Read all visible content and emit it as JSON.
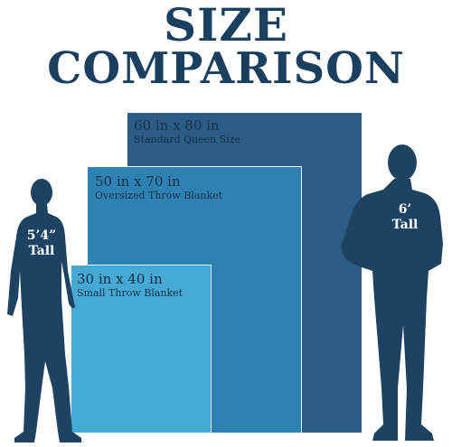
{
  "title": {
    "line1": "SIZE",
    "line2": "COMPARISON"
  },
  "colors": {
    "title": "#1b3f5e",
    "queen": "#2a5c87",
    "oversized_throw": "#2e82b2",
    "small_throw": "#45a9d3",
    "silhouette": "#1d4262"
  },
  "blankets": {
    "queen": {
      "size": "60 in x 80 in",
      "name": "Standard Queen Size"
    },
    "oversized_throw": {
      "size": "50 in x 70 in",
      "name": "Oversized Throw Blanket"
    },
    "small_throw": {
      "size": "30 in x 40 in",
      "name": "Small Throw Blanket"
    }
  },
  "people": {
    "woman": {
      "line1": "5’4”",
      "line2": "Tall"
    },
    "man": {
      "line1": "6’",
      "line2": "Tall"
    }
  }
}
